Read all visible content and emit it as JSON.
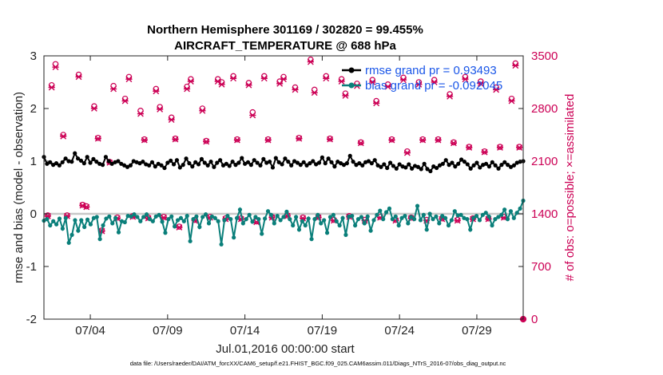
{
  "chart_data": {
    "type": "line",
    "title": "Northern Hemisphere 301169 / 302820 = 99.455%",
    "subtitle": "AIRCRAFT_TEMPERATURE @ 688 hPa",
    "xlabel": "Jul.01,2016 00:00:00 start",
    "ylabel": "rmse and bias (model - observation)",
    "ylabel_right": "# of obs: o=possible; ×=assimilated",
    "footnote": "data file: /Users/raeder/DAI/ATM_forcXX/CAM6_setup/f.e21.FHIST_BGC.f09_025.CAM6assim.011/Diags_NTrS_2016-07/obs_diag_output.nc",
    "xlim": [
      1,
      32
    ],
    "ylim": [
      -2,
      3
    ],
    "ylim_right": [
      0,
      3500
    ],
    "x_tick_labels": [
      {
        "x": 4,
        "label": "07/04"
      },
      {
        "x": 9,
        "label": "07/09"
      },
      {
        "x": 14,
        "label": "07/14"
      },
      {
        "x": 19,
        "label": "07/19"
      },
      {
        "x": 24,
        "label": "07/24"
      },
      {
        "x": 29,
        "label": "07/29"
      }
    ],
    "y_ticks": [
      -2,
      -1,
      0,
      1,
      2,
      3
    ],
    "y_ticks_right": [
      0,
      700,
      1400,
      2100,
      2800,
      3500
    ],
    "zero_line": 0,
    "legend_position": "top-right",
    "series": [
      {
        "name": "rmse grand pr = 0.93493",
        "axis": "left",
        "color": "#000000",
        "values": [
          1.08,
          0.95,
          0.98,
          0.93,
          0.96,
          0.92,
          0.98,
          1.05,
          1.0,
          0.99,
          1.15,
          1.05,
          1.01,
          0.96,
          1.08,
          0.97,
          1.04,
          0.99,
          0.95,
          0.93,
          1.08,
          1.0,
          0.95,
          0.98,
          1.0,
          0.95,
          0.92,
          0.89,
          0.92,
          1.0,
          0.98,
          0.96,
          0.99,
          0.94,
          0.92,
          0.98,
          0.9,
          0.95,
          0.92,
          0.87,
          0.97,
          1.01,
          0.94,
          1.02,
          0.88,
          0.93,
          1.05,
          0.96,
          0.9,
          0.98,
          0.94,
          1.04,
          0.97,
          0.92,
          0.99,
          0.89,
          0.97,
          1.02,
          0.92,
          0.95,
          0.91,
          0.99,
          0.93,
          0.97,
          1.06,
          0.95,
          0.98,
          0.93,
          1.02,
          0.97,
          0.92,
          1.04,
          0.97,
          0.99,
          0.88,
          1.06,
          0.98,
          0.94,
          1.05,
          0.99,
          0.92,
          1.0,
          0.97,
          0.93,
          0.98,
          0.92,
          0.96,
          1.0,
          0.94,
          0.97,
          1.07,
          0.96,
          1.05,
          0.98,
          0.9,
          0.99,
          0.96,
          0.93,
          0.96,
          1.1,
          0.99,
          0.93,
          0.96,
          0.92,
          0.98,
          1.0,
          0.96,
          1.02,
          0.92,
          0.89,
          0.94,
          0.87,
          0.97,
          0.91,
          0.86,
          0.94,
          0.9,
          0.88,
          0.94,
          0.86,
          0.91,
          0.89,
          0.85,
          0.95,
          0.85,
          0.81,
          0.9,
          0.87,
          0.92,
          0.95,
          1.02,
          0.93,
          0.97,
          0.9,
          0.95,
          1.03,
          0.99,
          0.94,
          0.86,
          0.92,
          0.97,
          0.88,
          0.93,
          0.95,
          0.9,
          0.98,
          0.92,
          0.86,
          0.93,
          0.98,
          0.93,
          0.89,
          0.92,
          0.97,
          0.99,
          1.0
        ]
      },
      {
        "name": "bias grand pr = -0.092045",
        "axis": "left",
        "color": "#0a7f7a",
        "values": [
          -0.13,
          -0.1,
          -0.22,
          -0.14,
          -0.2,
          -0.09,
          -0.28,
          -0.08,
          -0.55,
          -0.4,
          -0.12,
          -0.32,
          -0.12,
          -0.25,
          -0.11,
          -0.2,
          -0.08,
          -0.06,
          -0.48,
          -0.22,
          -0.09,
          -0.05,
          -0.18,
          -0.08,
          -0.35,
          -0.14,
          -0.16,
          -0.04,
          -0.05,
          -0.01,
          -0.06,
          -0.14,
          -0.06,
          -0.01,
          -0.1,
          -0.14,
          -0.05,
          -0.02,
          -0.15,
          -0.36,
          -0.1,
          -0.05,
          -0.24,
          -0.12,
          -0.08,
          -0.14,
          -0.04,
          -0.52,
          -0.1,
          -0.05,
          -0.25,
          -0.06,
          -0.01,
          -0.18,
          -0.05,
          -0.08,
          -0.14,
          -0.58,
          -0.12,
          -0.04,
          -0.1,
          -0.45,
          -0.08,
          0.08,
          -0.18,
          -0.1,
          -0.02,
          -0.15,
          -0.06,
          -0.1,
          -0.38,
          -0.09,
          0.05,
          -0.02,
          -0.18,
          -0.04,
          -0.12,
          -0.06,
          0.04,
          -0.1,
          -0.22,
          -0.06,
          -0.3,
          -0.14,
          -0.22,
          -0.09,
          -0.48,
          -0.1,
          -0.02,
          -0.18,
          -0.12,
          -0.36,
          -0.06,
          -0.02,
          -0.14,
          -0.22,
          -0.08,
          -0.4,
          -0.05,
          -0.04,
          -0.22,
          -0.1,
          -0.06,
          -0.18,
          -0.05,
          -0.32,
          -0.12,
          -0.02,
          0.06,
          -0.1,
          0.03,
          0.1,
          -0.1,
          -0.05,
          -0.22,
          -0.08,
          -0.04,
          -0.18,
          -0.06,
          -0.1,
          0.15,
          -0.12,
          -0.02,
          -0.3,
          0.0,
          -0.1,
          -0.05,
          -0.18,
          -0.04,
          -0.08,
          -0.22,
          -0.12,
          0.05,
          -0.03,
          -0.02,
          -0.08,
          -0.1,
          -0.3,
          -0.08,
          -0.04,
          -0.12,
          -0.02,
          0.02,
          -0.05,
          -0.22,
          -0.1,
          -0.06,
          -0.02,
          0.08,
          -0.1,
          0.05,
          -0.08,
          0.02,
          0.1,
          0.25
        ]
      }
    ],
    "obs_possible": {
      "axis": "right",
      "color": "#cc0055",
      "x": [
        1.25,
        1.5,
        1.75,
        2.25,
        2.5,
        3.25,
        3.5,
        3.75,
        4.25,
        4.5,
        4.75,
        5.25,
        5.5,
        5.75,
        6.25,
        6.5,
        6.75,
        7.25,
        7.5,
        7.75,
        8.25,
        8.5,
        8.75,
        9.25,
        9.5,
        9.75,
        10.25,
        10.5,
        10.75,
        11.25,
        11.5,
        11.75,
        12.25,
        12.5,
        12.75,
        13.25,
        13.5,
        13.75,
        14.25,
        14.5,
        14.75,
        15.25,
        15.5,
        15.75,
        16.25,
        16.5,
        16.75,
        17.25,
        17.5,
        17.75,
        18.25,
        18.5,
        18.75,
        19.25,
        19.5,
        19.75,
        20.25,
        20.5,
        20.75,
        21.25,
        21.5,
        21.75,
        22.25,
        22.5,
        22.75,
        23.25,
        23.5,
        23.75,
        24.25,
        24.5,
        24.75,
        25.25,
        25.5,
        25.75,
        26.25,
        26.5,
        26.75,
        27.25,
        27.5,
        27.75,
        28.25,
        28.5,
        28.75,
        29.25,
        29.5,
        29.75,
        30.25,
        30.5,
        30.75,
        31.25,
        31.5,
        31.75
      ],
      "values": [
        1380,
        3110,
        3390,
        2450,
        1380,
        3250,
        1520,
        1500,
        2830,
        2410,
        1180,
        2090,
        3100,
        1350,
        2930,
        3220,
        1370,
        2770,
        2390,
        1350,
        3060,
        2820,
        1360,
        2680,
        2400,
        1230,
        3090,
        3190,
        1320,
        2800,
        2370,
        1360,
        3190,
        3150,
        1340,
        3230,
        2390,
        1340,
        3140,
        2750,
        1300,
        3230,
        2390,
        1360,
        3160,
        3220,
        1380,
        3080,
        2410,
        1350,
        3450,
        3050,
        1360,
        3230,
        2400,
        1320,
        3190,
        3000,
        1370,
        3130,
        2350,
        1320,
        3180,
        2900,
        1360,
        3120,
        2390,
        1320,
        3210,
        2230,
        1350,
        3150,
        2390,
        1320,
        3180,
        2390,
        1340,
        2990,
        2350,
        1320,
        3220,
        2290,
        1340,
        3160,
        2230,
        1340,
        3080,
        2290,
        1360,
        2930,
        3400,
        2290
      ]
    },
    "obs_assimilated": {
      "axis": "right",
      "color": "#cc0055",
      "x": [
        1.25,
        1.5,
        1.75,
        2.25,
        2.5,
        3.25,
        3.5,
        3.75,
        4.25,
        4.5,
        4.75,
        5.25,
        5.5,
        5.75,
        6.25,
        6.5,
        6.75,
        7.25,
        7.5,
        7.75,
        8.25,
        8.5,
        8.75,
        9.25,
        9.5,
        9.75,
        10.25,
        10.5,
        10.75,
        11.25,
        11.5,
        11.75,
        12.25,
        12.5,
        12.75,
        13.25,
        13.5,
        13.75,
        14.25,
        14.5,
        14.75,
        15.25,
        15.5,
        15.75,
        16.25,
        16.5,
        16.75,
        17.25,
        17.5,
        17.75,
        18.25,
        18.5,
        18.75,
        19.25,
        19.5,
        19.75,
        20.25,
        20.5,
        20.75,
        21.25,
        21.5,
        21.75,
        22.25,
        22.5,
        22.75,
        23.25,
        23.5,
        23.75,
        24.25,
        24.5,
        24.75,
        25.25,
        25.5,
        25.75,
        26.25,
        26.5,
        26.75,
        27.25,
        27.5,
        27.75,
        28.25,
        28.5,
        28.75,
        29.25,
        29.5,
        29.75,
        30.25,
        30.5,
        30.75,
        31.25,
        31.5,
        31.75
      ],
      "values": [
        1370,
        3080,
        3350,
        2430,
        1370,
        3220,
        1510,
        1490,
        2800,
        2400,
        1170,
        2080,
        3060,
        1340,
        2900,
        3190,
        1360,
        2730,
        2380,
        1340,
        3030,
        2790,
        1350,
        2650,
        2390,
        1220,
        3060,
        3160,
        1310,
        2770,
        2360,
        1350,
        3160,
        3120,
        1330,
        3200,
        2380,
        1330,
        3110,
        2710,
        1290,
        3200,
        2380,
        1350,
        3130,
        3190,
        1370,
        3050,
        2400,
        1340,
        3420,
        3010,
        1350,
        3200,
        2390,
        1310,
        3160,
        2970,
        1360,
        3100,
        2340,
        1310,
        3150,
        2870,
        1350,
        3090,
        2380,
        1310,
        3180,
        2210,
        1340,
        3120,
        2380,
        1310,
        3150,
        2380,
        1330,
        2960,
        2340,
        1310,
        3190,
        2280,
        1330,
        3130,
        2220,
        1330,
        3050,
        2280,
        1350,
        2900,
        3370,
        2280
      ]
    },
    "extra_possible_point": {
      "x": 32,
      "value": 0
    }
  }
}
